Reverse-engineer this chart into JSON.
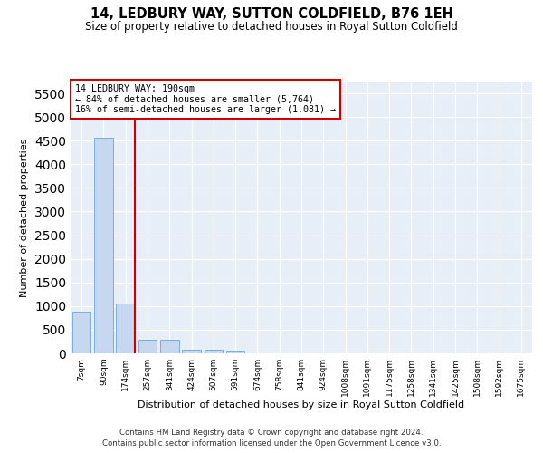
{
  "title": "14, LEDBURY WAY, SUTTON COLDFIELD, B76 1EH",
  "subtitle": "Size of property relative to detached houses in Royal Sutton Coldfield",
  "xlabel": "Distribution of detached houses by size in Royal Sutton Coldfield",
  "ylabel": "Number of detached properties",
  "bar_values": [
    880,
    4560,
    1060,
    285,
    285,
    80,
    80,
    50,
    0,
    0,
    0,
    0,
    0,
    0,
    0,
    0,
    0,
    0,
    0,
    0,
    0
  ],
  "bar_labels": [
    "7sqm",
    "90sqm",
    "174sqm",
    "257sqm",
    "341sqm",
    "424sqm",
    "507sqm",
    "591sqm",
    "674sqm",
    "758sqm",
    "841sqm",
    "924sqm",
    "1008sqm",
    "1091sqm",
    "1175sqm",
    "1258sqm",
    "1341sqm",
    "1425sqm",
    "1508sqm",
    "1592sqm",
    "1675sqm"
  ],
  "bar_color": "#c5d8ef",
  "bar_edge_color": "#7aafd4",
  "vline_color": "#cc0000",
  "annotation_text": "14 LEDBURY WAY: 190sqm\n← 84% of detached houses are smaller (5,764)\n16% of semi-detached houses are larger (1,081) →",
  "annotation_box_color": "#ffffff",
  "annotation_box_edge": "#cc0000",
  "ylim": [
    0,
    5750
  ],
  "yticks": [
    0,
    500,
    1000,
    1500,
    2000,
    2500,
    3000,
    3500,
    4000,
    4500,
    5000,
    5500
  ],
  "background_color": "#e8eef8",
  "footer_line1": "Contains HM Land Registry data © Crown copyright and database right 2024.",
  "footer_line2": "Contains public sector information licensed under the Open Government Licence v3.0."
}
